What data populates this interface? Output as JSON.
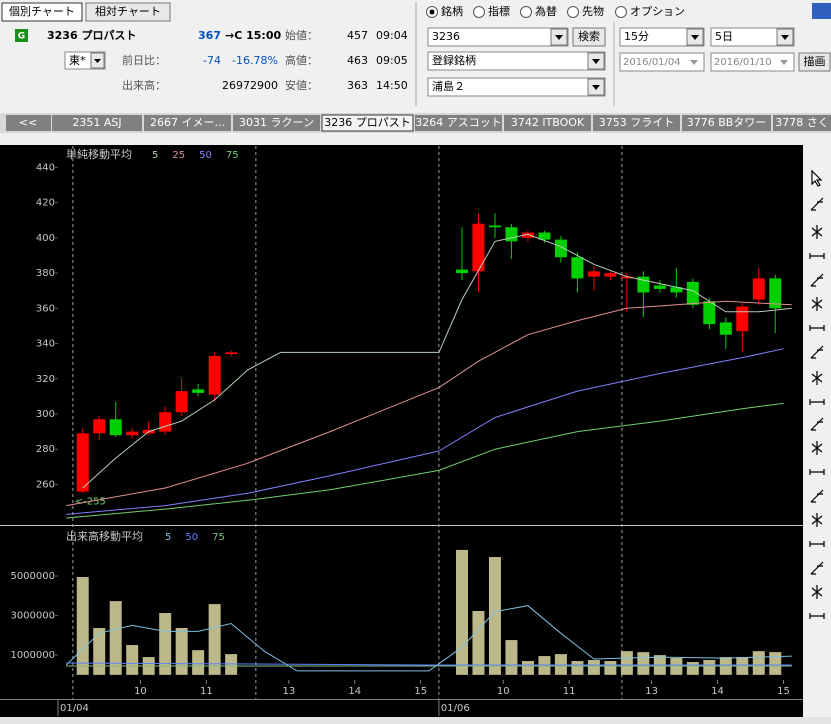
{
  "toolbar": {
    "tabs": [
      "個別チャート",
      "相対チャート"
    ]
  },
  "quote": {
    "badge": "G",
    "code_name": "3236 プロパスト",
    "price": "367",
    "time": "→C 15:00",
    "market": "東*",
    "open_label": "始値：",
    "open": "457",
    "open_time": "09:04",
    "change_label": "前日比：",
    "change": "-74",
    "change_pct": "-16.78%",
    "high_label": "高値：",
    "high": "463",
    "high_time": "09:05",
    "volume_label": "出来高：",
    "volume": "26972900",
    "low_label": "安値：",
    "low": "363",
    "low_time": "14:50"
  },
  "search": {
    "modes": [
      "銘柄",
      "指標",
      "為替",
      "先物",
      "オプション"
    ],
    "code": "3236",
    "search_button": "検索",
    "list": "登録銘柄",
    "group": "浦島２",
    "interval": "15分",
    "span": "5日",
    "from": "2016/01/04",
    "to": "2016/01/10",
    "draw_button": "描画"
  },
  "stock_tabs": {
    "prev": "<<",
    "items": [
      "2351 ASJ",
      "2667 イメー...",
      "3031 ラクーン",
      "3236 プロパスト",
      "3264 アスコット",
      "3742 ITBOOK",
      "3753 フライト",
      "3776 BBタワー",
      "3778 さく"
    ]
  },
  "chart_data": [
    {
      "type": "candlestick",
      "title": "単純移動平均",
      "x": [
        0,
        1,
        2,
        3,
        4,
        5,
        6,
        7,
        8,
        9,
        23,
        24,
        25,
        26,
        27,
        28,
        29,
        30,
        31,
        32,
        33,
        34,
        35,
        36,
        37,
        38,
        39,
        40,
        41,
        42
      ],
      "open": [
        256,
        289,
        297,
        288,
        289,
        290,
        301,
        314,
        311,
        334,
        382,
        381,
        407,
        406,
        400,
        403,
        399,
        389,
        378,
        378,
        377,
        378,
        373,
        372,
        375,
        364,
        352,
        347,
        365,
        377
      ],
      "high": [
        292,
        299,
        307,
        292,
        296,
        304,
        320,
        317,
        335,
        336,
        406,
        414,
        414,
        408,
        404,
        404,
        401,
        392,
        384,
        381,
        380,
        381,
        376,
        383,
        377,
        366,
        355,
        363,
        383,
        379
      ],
      "low": [
        255,
        285,
        287,
        286,
        288,
        288,
        299,
        310,
        307,
        333,
        376,
        369,
        400,
        388,
        398,
        397,
        386,
        369,
        370,
        376,
        358,
        355,
        369,
        366,
        360,
        348,
        337,
        335,
        362,
        346
      ],
      "close": [
        289,
        297,
        288,
        290,
        291,
        301,
        313,
        312,
        333,
        335,
        380,
        408,
        406,
        398,
        403,
        399,
        389,
        377,
        381,
        380,
        378,
        369,
        371,
        369,
        362,
        351,
        345,
        361,
        377,
        360
      ],
      "up_color": "#ff0000",
      "down_color": "#00d000",
      "annotation": "<-255",
      "series": [
        {
          "name": "5",
          "color": "#b8d0b8",
          "x": [
            0,
            2,
            4,
            6,
            8,
            10,
            12,
            21.6,
            23,
            25,
            27,
            29,
            31,
            33,
            35,
            37,
            39,
            41,
            43
          ],
          "values": [
            258,
            275,
            290,
            296,
            308,
            325,
            335,
            335,
            365,
            398,
            402,
            395,
            385,
            378,
            374,
            370,
            358,
            358,
            360
          ]
        },
        {
          "name": "25",
          "color": "#e09090",
          "x": [
            -1,
            5,
            10,
            15,
            21.6,
            24,
            27,
            30,
            33,
            36,
            39,
            43
          ],
          "values": [
            248,
            258,
            272,
            290,
            315,
            330,
            345,
            353,
            360,
            362,
            364,
            362
          ]
        },
        {
          "name": "50",
          "color": "#8080ff",
          "x": [
            -1,
            5,
            10,
            15,
            21.6,
            25,
            30,
            35,
            40,
            42.5
          ],
          "values": [
            243,
            248,
            255,
            265,
            279,
            298,
            313,
            323,
            332,
            337
          ]
        },
        {
          "name": "75",
          "color": "#70d070",
          "x": [
            -1,
            5,
            10,
            15,
            21.6,
            25,
            30,
            35,
            40,
            42.5
          ],
          "values": [
            241,
            246,
            251,
            257,
            268,
            280,
            290,
            296,
            303,
            306
          ]
        }
      ],
      "xlim": [
        -1.5,
        43.5
      ],
      "ylim": [
        237,
        451
      ],
      "yticks": [
        260,
        280,
        300,
        320,
        340,
        360,
        380,
        400,
        420,
        440
      ],
      "session_lines": [
        -0.6,
        10.5,
        21.6,
        32.7
      ]
    },
    {
      "type": "bar",
      "title": "出来高移動平均",
      "x": [
        0,
        1,
        2,
        3,
        4,
        5,
        6,
        7,
        8,
        9,
        23,
        24,
        25,
        26,
        27,
        28,
        29,
        30,
        31,
        32,
        33,
        34,
        35,
        36,
        37,
        38,
        39,
        40,
        41,
        42
      ],
      "values": [
        4950000,
        2370000,
        3730000,
        1510000,
        900000,
        3130000,
        2370000,
        1250000,
        3580000,
        1050000,
        6320000,
        3230000,
        5960000,
        1760000,
        700000,
        950000,
        1050000,
        700000,
        750000,
        700000,
        1200000,
        1150000,
        1000000,
        850000,
        650000,
        750000,
        900000,
        900000,
        1200000,
        1150000
      ],
      "color": "#bdb889",
      "series": [
        {
          "name": "5",
          "color": "#80c0e0",
          "x": [
            -1,
            1,
            3,
            5,
            7,
            9,
            11,
            13,
            21,
            23,
            25,
            27,
            29,
            31,
            35,
            39,
            43
          ],
          "values": [
            500000,
            2100000,
            2500000,
            2200000,
            2200000,
            2600000,
            1200000,
            200000,
            200000,
            1400000,
            3200000,
            3500000,
            2100000,
            800000,
            900000,
            850000,
            950000
          ]
        },
        {
          "name": "50",
          "color": "#6080ff",
          "x": [
            -1,
            21,
            43
          ],
          "values": [
            600000,
            500000,
            500000
          ]
        },
        {
          "name": "75",
          "color": "#80c080",
          "x": [
            -1,
            43
          ],
          "values": [
            450000,
            450000
          ]
        }
      ],
      "xlim": [
        -1.5,
        43.5
      ],
      "ylim": [
        -260000,
        7480000
      ],
      "yticks": [
        1000000,
        3000000,
        5000000
      ],
      "xticks": [
        {
          "value": 3.5,
          "label": "10"
        },
        {
          "value": 7.5,
          "label": "11"
        },
        {
          "value": 12.5,
          "label": "13"
        },
        {
          "value": 16.5,
          "label": "14"
        },
        {
          "value": 20.5,
          "label": "15"
        },
        {
          "value": 25.5,
          "label": "10"
        },
        {
          "value": 29.5,
          "label": "11"
        },
        {
          "value": 34.5,
          "label": "13"
        },
        {
          "value": 38.5,
          "label": "14"
        },
        {
          "value": 42.5,
          "label": "15"
        }
      ],
      "date_ticks": [
        {
          "value": -1.5,
          "label": "01/04"
        },
        {
          "value": 21.6,
          "label": "01/06"
        }
      ]
    }
  ]
}
